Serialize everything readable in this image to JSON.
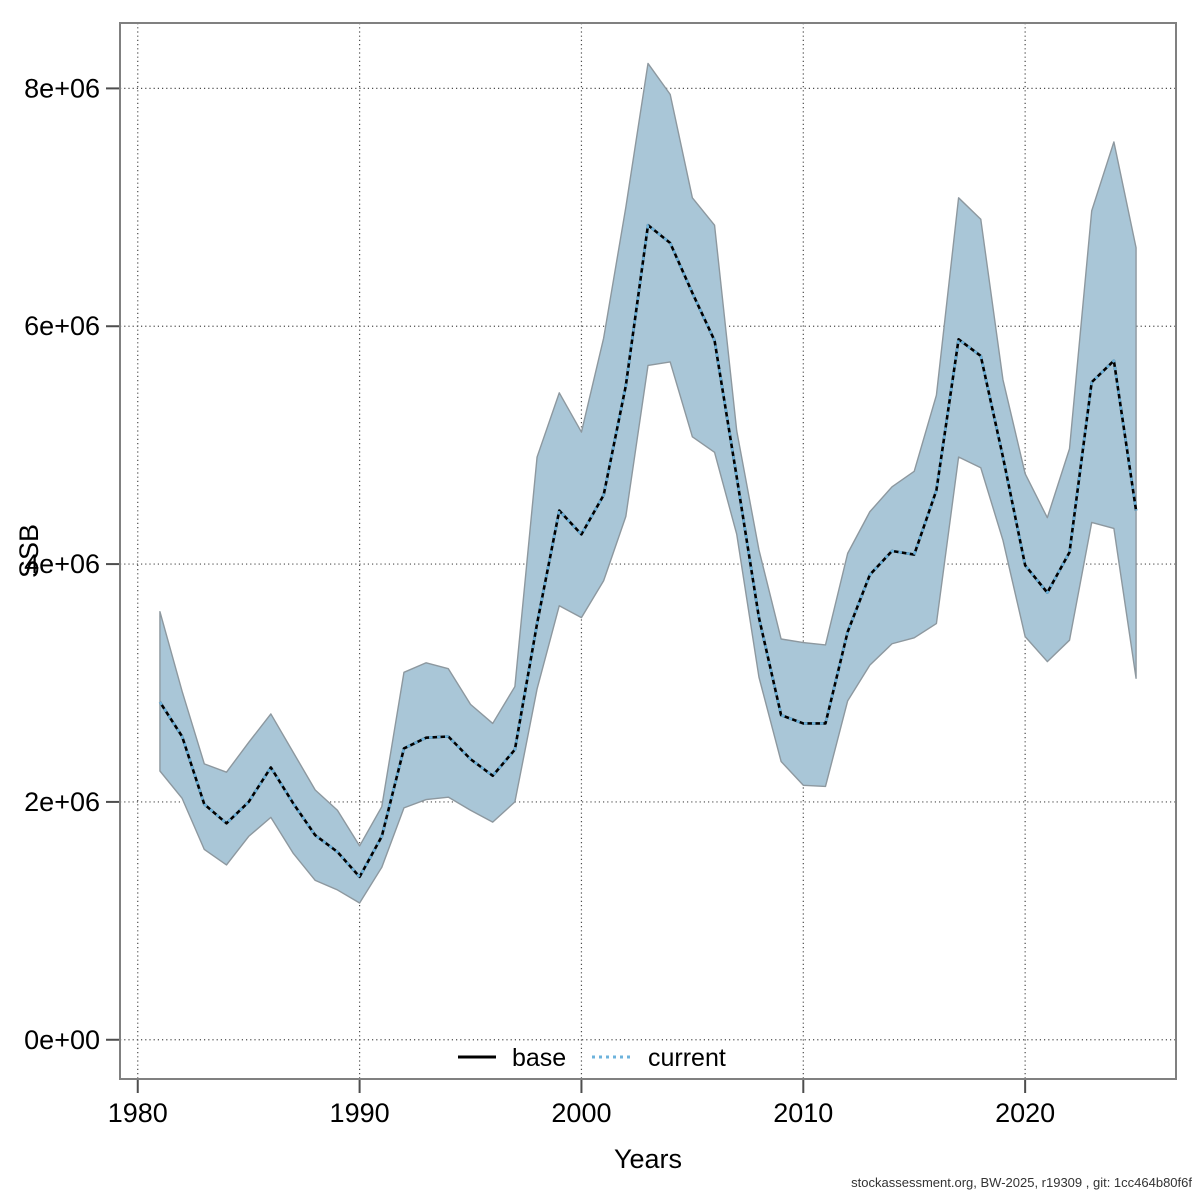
{
  "figure": {
    "y_axis_label": "SSB",
    "x_axis_label": "Years",
    "footer": "stockassessment.org, BW-2025, r19309 , git: 1cc464b80f6f",
    "legend": {
      "items": [
        {
          "label": "base",
          "style": "solid",
          "color": "#000000"
        },
        {
          "label": "current",
          "style": "dotted",
          "color": "#6db3dc"
        }
      ]
    },
    "colors": {
      "band_fill": "#a9c6d7",
      "band_border": "#8d989f",
      "base_line": "#000000",
      "current_line": "#6db3dc",
      "box_border": "#808080",
      "grid": "#4d4d4d",
      "tick": "#4d4d4d",
      "text": "#000000",
      "footer_text": "#333333"
    }
  },
  "chart_data": {
    "type": "area",
    "title": "",
    "xlabel": "Years",
    "ylabel": "SSB",
    "grid": true,
    "legend_position": "bottom-center",
    "xlim": [
      1979.2,
      2026.8
    ],
    "ylim": [
      -330000,
      8550000
    ],
    "x_ticks": {
      "values": [
        1980,
        1990,
        2000,
        2010,
        2020
      ],
      "labels": [
        "1980",
        "1990",
        "2000",
        "2010",
        "2020"
      ]
    },
    "y_ticks": {
      "values": [
        0,
        2000000,
        4000000,
        6000000,
        8000000
      ],
      "labels": [
        "0e+00",
        "2e+06",
        "4e+06",
        "6e+06",
        "8e+06"
      ]
    },
    "x": [
      1981,
      1982,
      1983,
      1984,
      1985,
      1986,
      1987,
      1988,
      1989,
      1990,
      1991,
      1992,
      1993,
      1994,
      1995,
      1996,
      1997,
      1998,
      1999,
      2000,
      2001,
      2002,
      2003,
      2004,
      2005,
      2006,
      2007,
      2008,
      2009,
      2010,
      2011,
      2012,
      2013,
      2014,
      2015,
      2016,
      2017,
      2018,
      2019,
      2020,
      2021,
      2022,
      2023,
      2024,
      2025
    ],
    "series": [
      {
        "name": "base",
        "style": "solid",
        "color": "#000000",
        "values": [
          2840000,
          2550000,
          1980000,
          1820000,
          2000000,
          2290000,
          1990000,
          1720000,
          1580000,
          1370000,
          1710000,
          2450000,
          2540000,
          2550000,
          2360000,
          2220000,
          2440000,
          3500000,
          4450000,
          4250000,
          4580000,
          5500000,
          6850000,
          6700000,
          6280000,
          5880000,
          4730000,
          3550000,
          2730000,
          2660000,
          2660000,
          3430000,
          3910000,
          4110000,
          4080000,
          4620000,
          5890000,
          5750000,
          4900000,
          3990000,
          3760000,
          4100000,
          5530000,
          5710000,
          4450000
        ]
      },
      {
        "name": "current",
        "style": "dotted",
        "color": "#6db3dc",
        "values": [
          2840000,
          2550000,
          1980000,
          1820000,
          2000000,
          2290000,
          1990000,
          1720000,
          1580000,
          1370000,
          1710000,
          2450000,
          2540000,
          2550000,
          2360000,
          2220000,
          2440000,
          3500000,
          4450000,
          4250000,
          4580000,
          5500000,
          6850000,
          6700000,
          6280000,
          5880000,
          4730000,
          3550000,
          2730000,
          2660000,
          2660000,
          3430000,
          3910000,
          4110000,
          4080000,
          4620000,
          5890000,
          5750000,
          4900000,
          3990000,
          3760000,
          4100000,
          5530000,
          5710000,
          4450000
        ]
      }
    ],
    "band": {
      "name": "confidence-interval",
      "fill": "#a9c6d7",
      "lower": [
        2260000,
        2030000,
        1600000,
        1470000,
        1710000,
        1870000,
        1570000,
        1340000,
        1260000,
        1150000,
        1450000,
        1950000,
        2020000,
        2040000,
        1930000,
        1830000,
        2000000,
        2950000,
        3650000,
        3550000,
        3860000,
        4400000,
        5670000,
        5700000,
        5070000,
        4940000,
        4250000,
        3050000,
        2340000,
        2140000,
        2130000,
        2850000,
        3150000,
        3330000,
        3380000,
        3500000,
        4900000,
        4810000,
        4200000,
        3390000,
        3180000,
        3360000,
        4350000,
        4300000,
        3040000
      ],
      "upper": [
        3600000,
        2930000,
        2320000,
        2250000,
        2500000,
        2740000,
        2420000,
        2100000,
        1930000,
        1630000,
        1960000,
        3090000,
        3170000,
        3120000,
        2820000,
        2660000,
        2970000,
        4900000,
        5440000,
        5110000,
        5900000,
        7000000,
        8210000,
        7950000,
        7080000,
        6850000,
        5120000,
        4120000,
        3370000,
        3340000,
        3320000,
        4090000,
        4440000,
        4650000,
        4780000,
        5420000,
        7080000,
        6900000,
        5550000,
        4760000,
        4390000,
        4970000,
        6970000,
        7550000,
        6660000
      ]
    }
  }
}
